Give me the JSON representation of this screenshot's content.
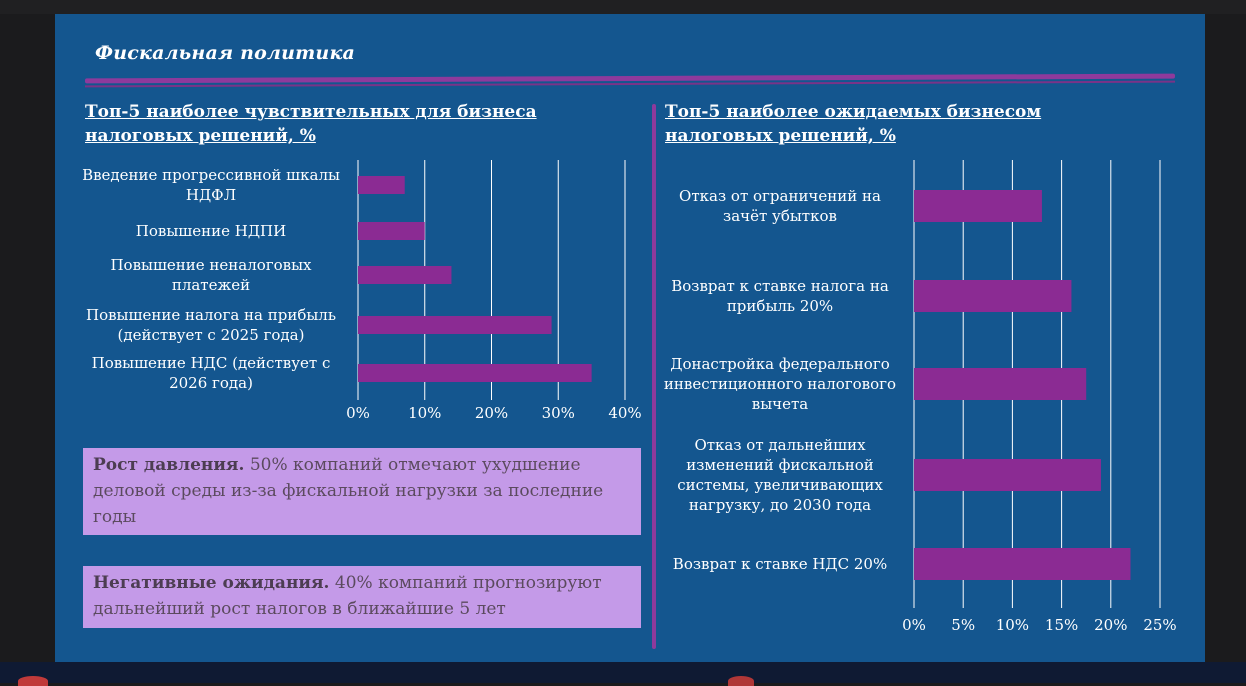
{
  "slide": {
    "title": "Фискальная политика"
  },
  "colors": {
    "background": "#14568f",
    "bar": "#8b2b93",
    "accent": "#8e3a9c",
    "callout": "#c49ae8",
    "gridline": "#ffffff"
  },
  "chart_data": [
    {
      "type": "bar",
      "orientation": "horizontal",
      "title": "Топ-5 наиболее чувствительных для бизнеса налоговых решений, %",
      "categories": [
        "Введение прогрессивной шкалы НДФЛ",
        "Повышение НДПИ",
        "Повышение неналоговых платежей",
        "Повышение налога на прибыль (действует с 2025 года)",
        "Повышение НДС (действует с 2026 года)"
      ],
      "values": [
        7,
        10,
        14,
        29,
        35
      ],
      "xlim": [
        0,
        40
      ],
      "ticks": [
        "0%",
        "10%",
        "20%",
        "30%",
        "40%"
      ],
      "grid": true
    },
    {
      "type": "bar",
      "orientation": "horizontal",
      "title": "Топ-5 наиболее ожидаемых бизнесом налоговых решений, %",
      "categories": [
        "Отказ от ограничений на зачёт убытков",
        "Возврат к ставке налога на прибыль 20%",
        "Донастройка федерального инвестиционного налогового вычета",
        "Отказ от дальнейших изменений фискальной системы, увеличивающих нагрузку, до 2030 года",
        "Возврат к ставке НДС 20%"
      ],
      "values": [
        13,
        16,
        17.5,
        19,
        22
      ],
      "xlim": [
        0,
        25
      ],
      "ticks": [
        "0%",
        "5%",
        "10%",
        "15%",
        "20%",
        "25%"
      ],
      "grid": true
    }
  ],
  "callouts": [
    {
      "bold": "Рост давления.",
      "text": " 50% компаний отмечают ухудшение деловой среды из-за фискальной нагрузки за последние годы"
    },
    {
      "bold": "Негативные ожидания.",
      "text": " 40% компаний прогнозируют дальнейший рост налогов в ближайшие 5 лет"
    }
  ]
}
